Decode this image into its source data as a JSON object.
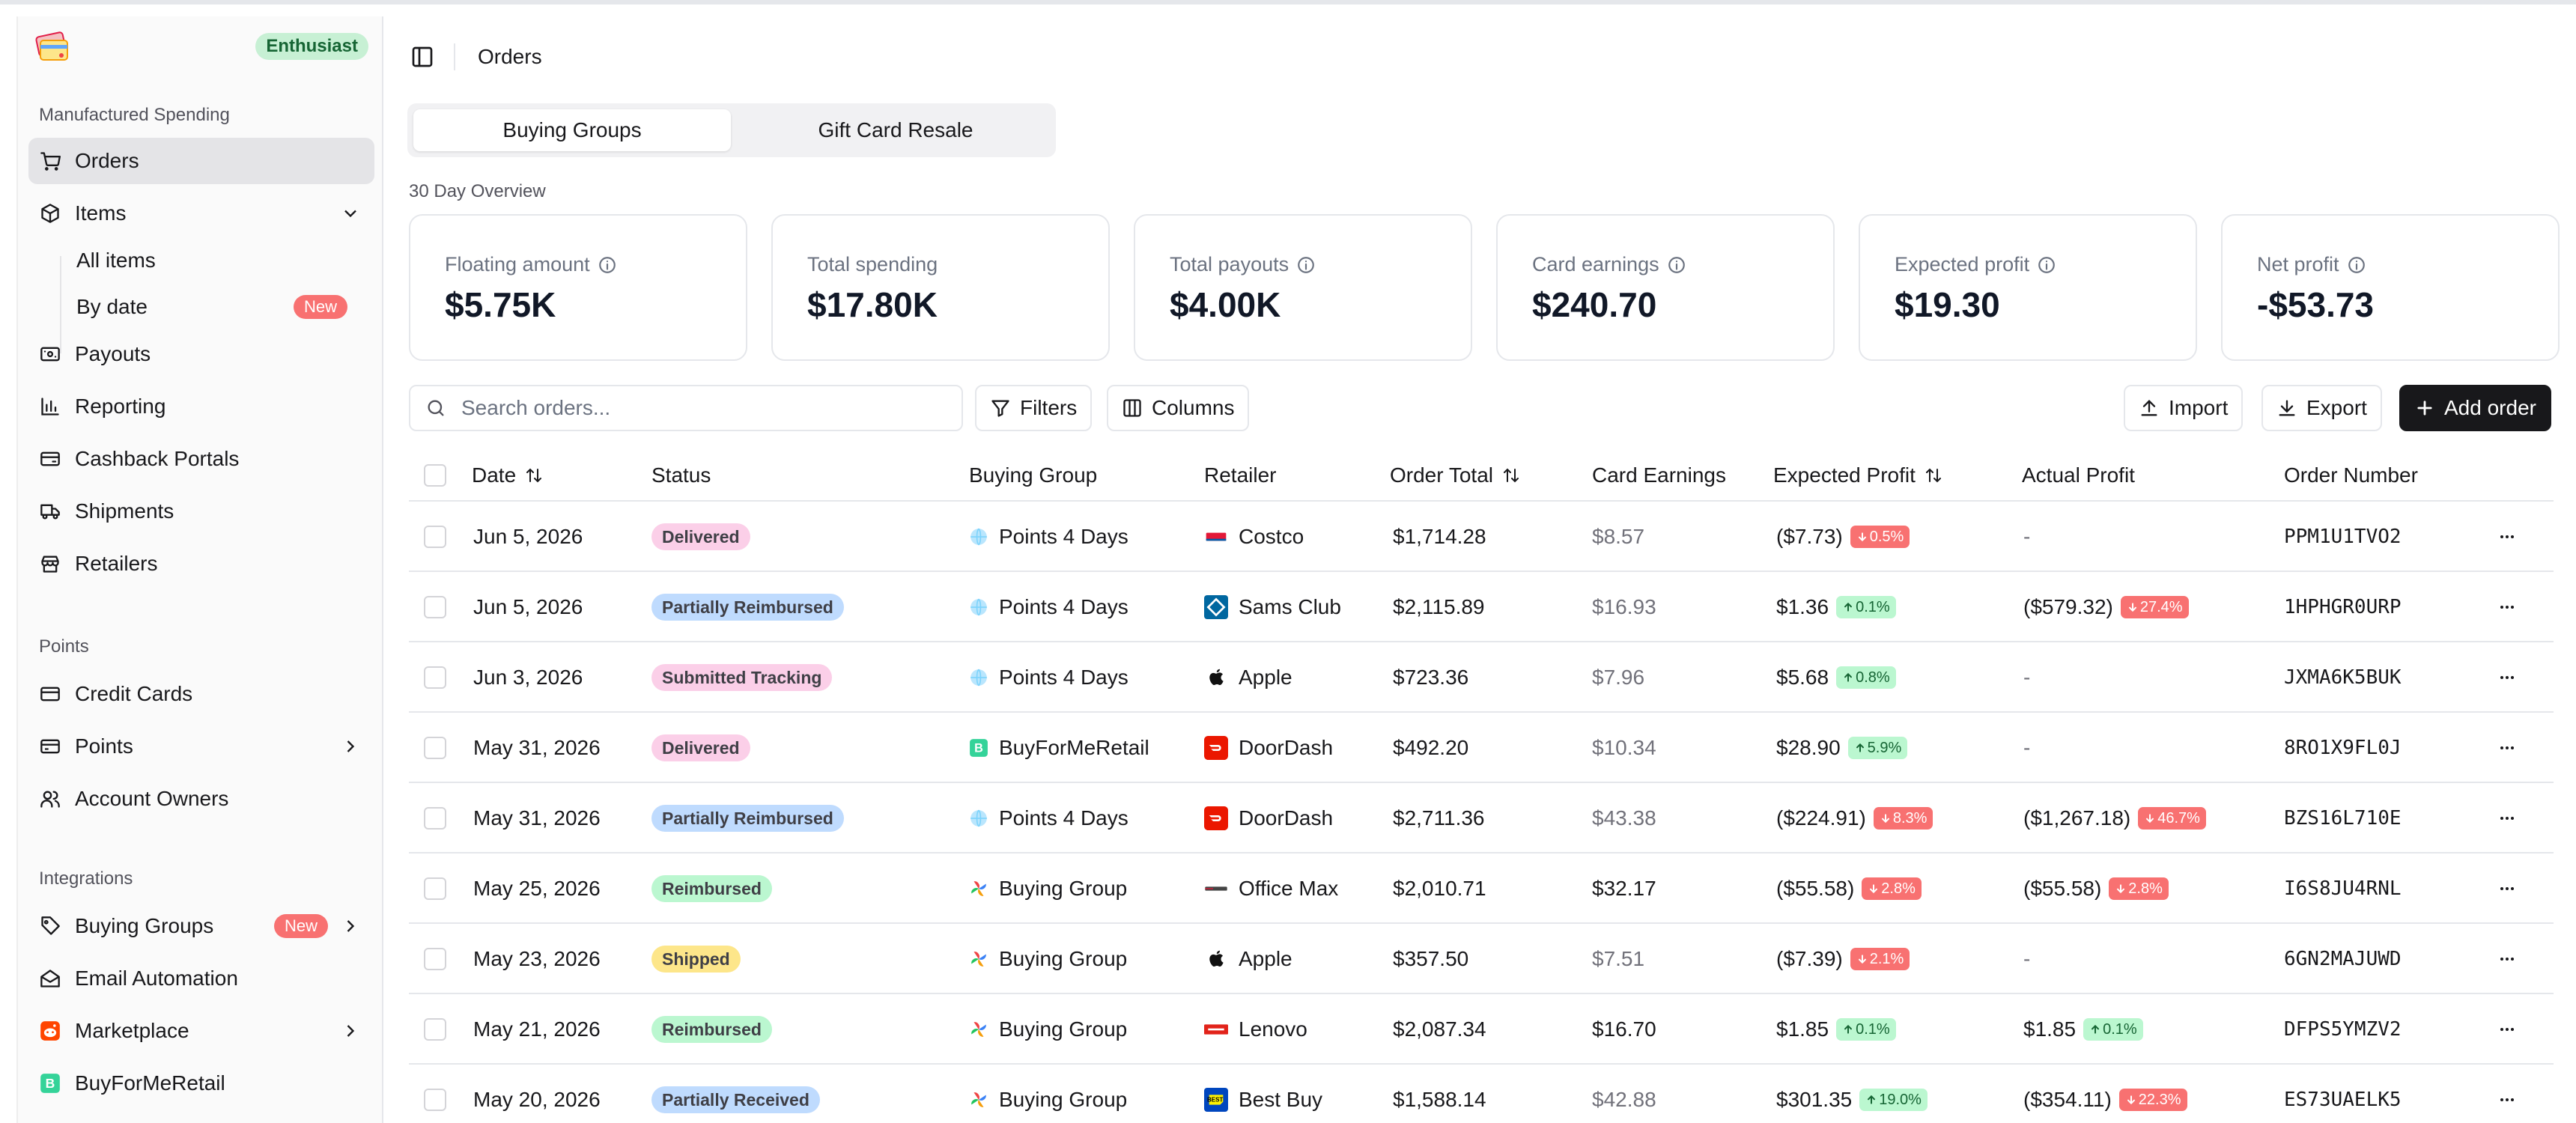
{
  "sidebar": {
    "plan_badge": "Enthusiast",
    "sections": {
      "manufactured": "Manufactured Spending",
      "points": "Points",
      "integrations": "Integrations"
    },
    "items": {
      "orders": "Orders",
      "items": "Items",
      "all_items": "All items",
      "by_date": "By date",
      "by_date_badge": "New",
      "payouts": "Payouts",
      "reporting": "Reporting",
      "cashback": "Cashback Portals",
      "shipments": "Shipments",
      "retailers": "Retailers",
      "credit_cards": "Credit Cards",
      "points": "Points",
      "account_owners": "Account Owners",
      "buying_groups": "Buying Groups",
      "buying_groups_badge": "New",
      "email_automation": "Email Automation",
      "marketplace": "Marketplace",
      "buyformeretail": "BuyForMeRetail"
    }
  },
  "header": {
    "title": "Orders"
  },
  "tabs": {
    "buying_groups": "Buying Groups",
    "gift_card_resale": "Gift Card Resale"
  },
  "overview": {
    "label": "30 Day Overview",
    "cards": [
      {
        "label": "Floating amount",
        "value": "$5.75K",
        "info": true
      },
      {
        "label": "Total spending",
        "value": "$17.80K",
        "info": false
      },
      {
        "label": "Total payouts",
        "value": "$4.00K",
        "info": true
      },
      {
        "label": "Card earnings",
        "value": "$240.70",
        "info": true
      },
      {
        "label": "Expected profit",
        "value": "$19.30",
        "info": true
      },
      {
        "label": "Net profit",
        "value": "-$53.73",
        "info": true
      }
    ]
  },
  "toolbar": {
    "search_placeholder": "Search orders...",
    "filters": "Filters",
    "columns": "Columns",
    "import": "Import",
    "export": "Export",
    "add_order": "Add order"
  },
  "table": {
    "columns": {
      "date": "Date",
      "status": "Status",
      "buying_group": "Buying Group",
      "retailer": "Retailer",
      "order_total": "Order Total",
      "card_earnings": "Card Earnings",
      "expected_profit": "Expected Profit",
      "actual_profit": "Actual Profit",
      "order_number": "Order Number"
    },
    "rows": [
      {
        "date": "Jun 5, 2026",
        "status": "Delivered",
        "status_color": "#fbcfe8",
        "group": "Points 4 Days",
        "group_icon": "globe-icon",
        "retailer": "Costco",
        "retailer_icon": "costco-logo",
        "total": "$1,714.28",
        "card": "$8.57",
        "card_muted": true,
        "expected": "($7.73)",
        "expected_pct": "0.5%",
        "expected_dir": "down",
        "actual": "-",
        "actual_pct": "",
        "actual_dir": "",
        "order_no": "PPM1U1TVO2"
      },
      {
        "date": "Jun 5, 2026",
        "status": "Partially Reimbursed",
        "status_color": "#bfdbfe",
        "group": "Points 4 Days",
        "group_icon": "globe-icon",
        "retailer": "Sams Club",
        "retailer_icon": "sams-club-logo",
        "total": "$2,115.89",
        "card": "$16.93",
        "card_muted": true,
        "expected": "$1.36",
        "expected_pct": "0.1%",
        "expected_dir": "up",
        "actual": "($579.32)",
        "actual_pct": "27.4%",
        "actual_dir": "down",
        "order_no": "1HPHGR0URP"
      },
      {
        "date": "Jun 3, 2026",
        "status": "Submitted Tracking",
        "status_color": "#fbcfe8",
        "group": "Points 4 Days",
        "group_icon": "globe-icon",
        "retailer": "Apple",
        "retailer_icon": "apple-logo",
        "total": "$723.36",
        "card": "$7.96",
        "card_muted": true,
        "expected": "$5.68",
        "expected_pct": "0.8%",
        "expected_dir": "up",
        "actual": "-",
        "actual_pct": "",
        "actual_dir": "",
        "order_no": "JXMA6K5BUK"
      },
      {
        "date": "May 31, 2026",
        "status": "Delivered",
        "status_color": "#fbcfe8",
        "group": "BuyForMeRetail",
        "group_icon": "bfmr-icon",
        "retailer": "DoorDash",
        "retailer_icon": "doordash-logo",
        "total": "$492.20",
        "card": "$10.34",
        "card_muted": true,
        "expected": "$28.90",
        "expected_pct": "5.9%",
        "expected_dir": "up",
        "actual": "-",
        "actual_pct": "",
        "actual_dir": "",
        "order_no": "8RO1X9FL0J"
      },
      {
        "date": "May 31, 2026",
        "status": "Partially Reimbursed",
        "status_color": "#bfdbfe",
        "group": "Points 4 Days",
        "group_icon": "globe-icon",
        "retailer": "DoorDash",
        "retailer_icon": "doordash-logo",
        "total": "$2,711.36",
        "card": "$43.38",
        "card_muted": true,
        "expected": "($224.91)",
        "expected_pct": "8.3%",
        "expected_dir": "down",
        "actual": "($1,267.18)",
        "actual_pct": "46.7%",
        "actual_dir": "down",
        "order_no": "BZS16L710E"
      },
      {
        "date": "May 25, 2026",
        "status": "Reimbursed",
        "status_color": "#bbf7d0",
        "group": "Buying Group",
        "group_icon": "pinwheel-icon",
        "retailer": "Office Max",
        "retailer_icon": "office-max-logo",
        "total": "$2,010.71",
        "card": "$32.17",
        "card_muted": false,
        "expected": "($55.58)",
        "expected_pct": "2.8%",
        "expected_dir": "down",
        "actual": "($55.58)",
        "actual_pct": "2.8%",
        "actual_dir": "down",
        "order_no": "I6S8JU4RNL"
      },
      {
        "date": "May 23, 2026",
        "status": "Shipped",
        "status_color": "#fde68a",
        "group": "Buying Group",
        "group_icon": "pinwheel-icon",
        "retailer": "Apple",
        "retailer_icon": "apple-logo",
        "total": "$357.50",
        "card": "$7.51",
        "card_muted": true,
        "expected": "($7.39)",
        "expected_pct": "2.1%",
        "expected_dir": "down",
        "actual": "-",
        "actual_pct": "",
        "actual_dir": "",
        "order_no": "6GN2MAJUWD"
      },
      {
        "date": "May 21, 2026",
        "status": "Reimbursed",
        "status_color": "#bbf7d0",
        "group": "Buying Group",
        "group_icon": "pinwheel-icon",
        "retailer": "Lenovo",
        "retailer_icon": "lenovo-logo",
        "total": "$2,087.34",
        "card": "$16.70",
        "card_muted": false,
        "expected": "$1.85",
        "expected_pct": "0.1%",
        "expected_dir": "up",
        "actual": "$1.85",
        "actual_pct": "0.1%",
        "actual_dir": "up",
        "order_no": "DFPS5YMZV2"
      },
      {
        "date": "May 20, 2026",
        "status": "Partially Received",
        "status_color": "#bfdbfe",
        "group": "Buying Group",
        "group_icon": "pinwheel-icon",
        "retailer": "Best Buy",
        "retailer_icon": "best-buy-logo",
        "total": "$1,588.14",
        "card": "$42.88",
        "card_muted": true,
        "expected": "$301.35",
        "expected_pct": "19.0%",
        "expected_dir": "up",
        "actual": "($354.11)",
        "actual_pct": "22.3%",
        "actual_dir": "down",
        "order_no": "ES73UAELK5"
      }
    ]
  }
}
